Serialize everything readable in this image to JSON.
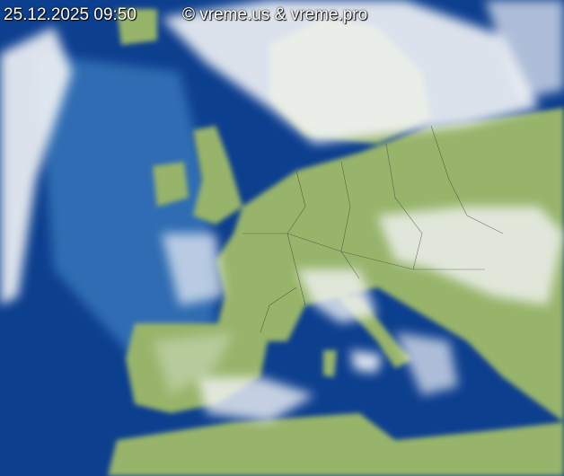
{
  "timestamp": "25.12.2025 09:50",
  "copyright": "© vreme.us & vreme.pro",
  "colors": {
    "sea": "#0d3f8f",
    "sea_light": "#3d7fc0",
    "land": "#97b46a",
    "cloud": "#f2f4f6"
  }
}
